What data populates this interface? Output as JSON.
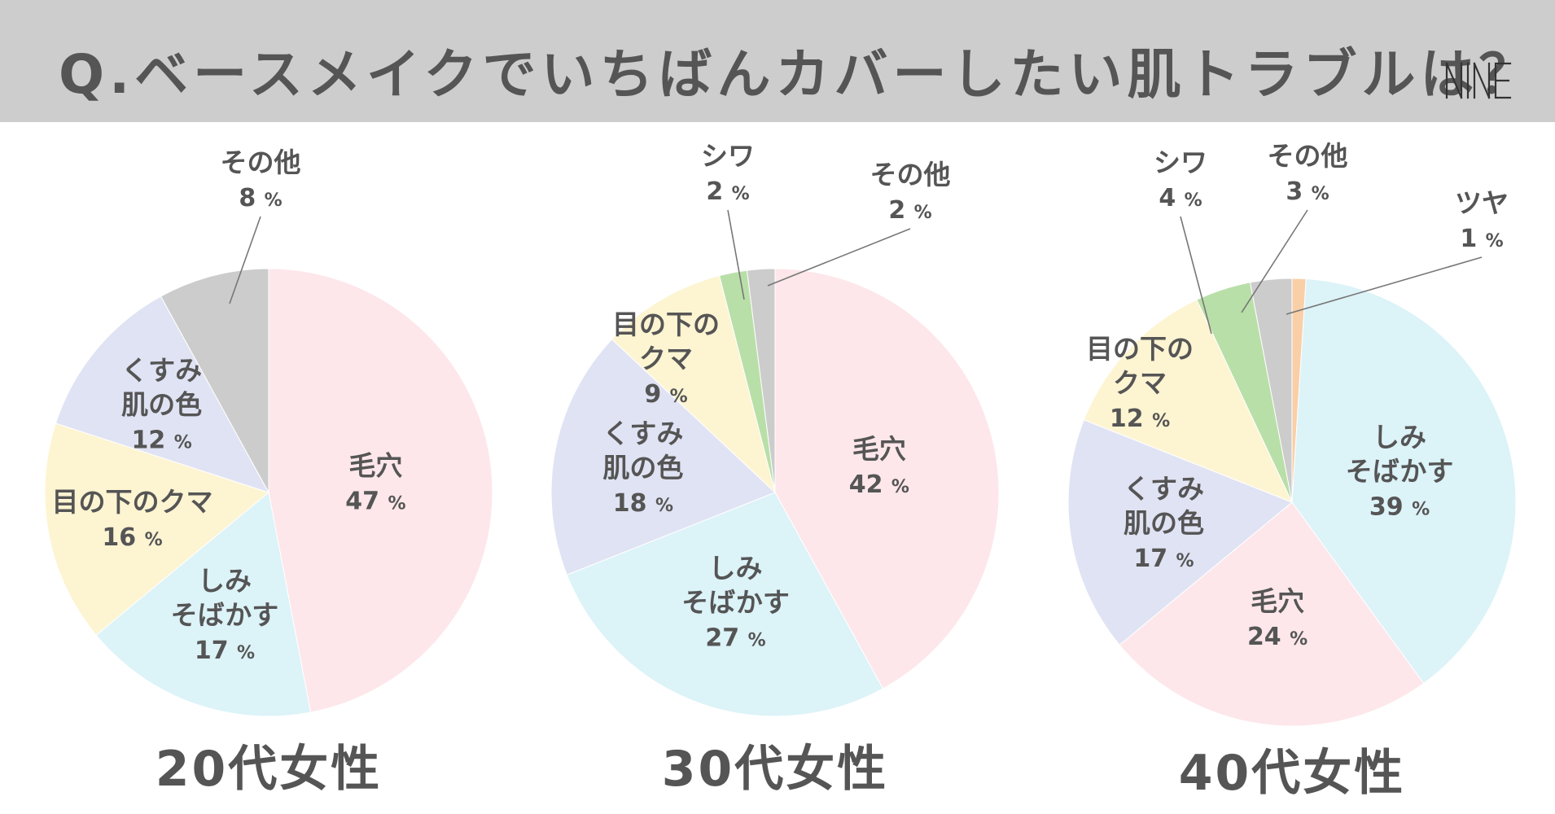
{
  "header": {
    "question": "Q.ベースメイクでいちばんカバーしたい肌トラブルは？",
    "logo_text": "NINE",
    "background": "#cdcdcd",
    "text_color": "#555555"
  },
  "chart_data": [
    {
      "type": "pie",
      "title": "20代女性",
      "slices": [
        {
          "label": [
            "毛穴"
          ],
          "value": 47,
          "color": "#fde7ea"
        },
        {
          "label": [
            "しみ",
            "そばかす"
          ],
          "value": 17,
          "color": "#dcf3f8"
        },
        {
          "label": [
            "目の下のクマ"
          ],
          "value": 16,
          "color": "#fdf4d2"
        },
        {
          "label": [
            "くすみ",
            "肌の色"
          ],
          "value": 12,
          "color": "#e0e3f3"
        },
        {
          "label": [
            "その他"
          ],
          "value": 8,
          "color": "#cccccc"
        }
      ]
    },
    {
      "type": "pie",
      "title": "30代女性",
      "slices": [
        {
          "label": [
            "毛穴"
          ],
          "value": 42,
          "color": "#fde7ea"
        },
        {
          "label": [
            "しみ",
            "そばかす"
          ],
          "value": 27,
          "color": "#dcf3f8"
        },
        {
          "label": [
            "くすみ",
            "肌の色"
          ],
          "value": 18,
          "color": "#e0e3f3"
        },
        {
          "label": [
            "目の下の",
            "クマ"
          ],
          "value": 9,
          "color": "#fdf4d2"
        },
        {
          "label": [
            "シワ"
          ],
          "value": 2,
          "color": "#b9dfa8"
        },
        {
          "label": [
            "その他"
          ],
          "value": 2,
          "color": "#cccccc"
        }
      ]
    },
    {
      "type": "pie",
      "title": "40代女性",
      "slices": [
        {
          "label": [
            "ツヤ"
          ],
          "value": 1,
          "color": "#f9cfa8"
        },
        {
          "label": [
            "しみ",
            "そばかす"
          ],
          "value": 39,
          "color": "#dcf3f8"
        },
        {
          "label": [
            "毛穴"
          ],
          "value": 24,
          "color": "#fde7ea"
        },
        {
          "label": [
            "くすみ",
            "肌の色"
          ],
          "value": 17,
          "color": "#e0e3f3"
        },
        {
          "label": [
            "目の下の",
            "クマ"
          ],
          "value": 12,
          "color": "#fdf4d2"
        },
        {
          "label": [
            "シワ"
          ],
          "value": 4,
          "color": "#b9dfa8"
        },
        {
          "label": [
            "その他"
          ],
          "value": 3,
          "color": "#cccccc"
        }
      ]
    }
  ],
  "unit": "%"
}
